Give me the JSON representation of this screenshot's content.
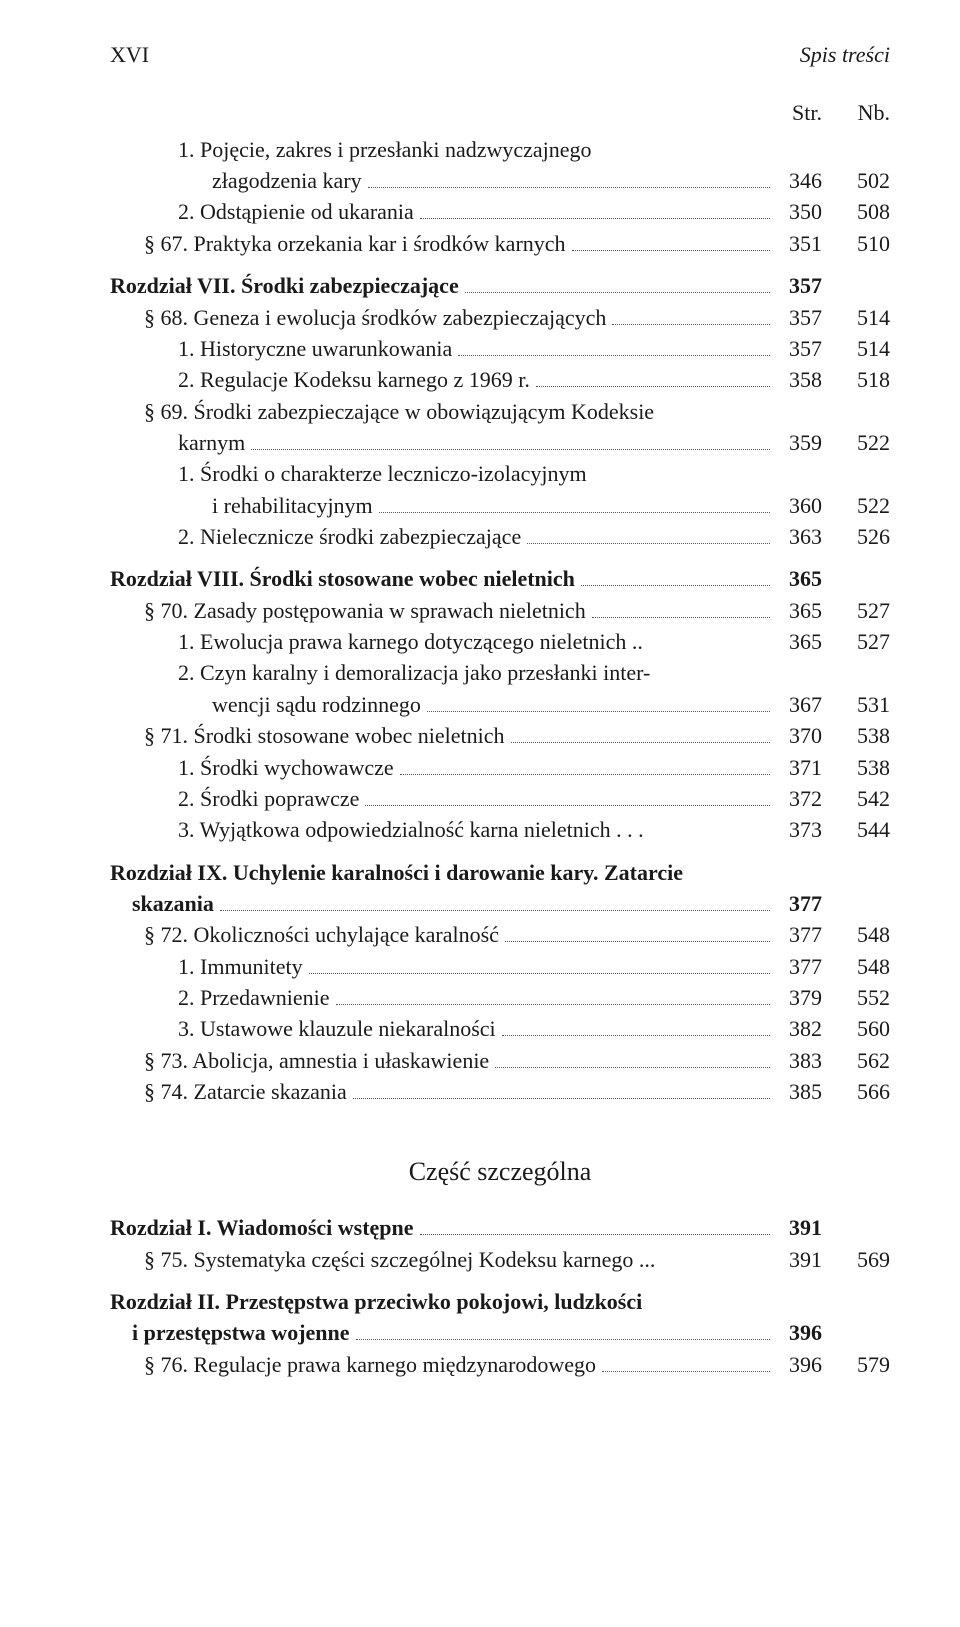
{
  "running_head": {
    "folio": "XVI",
    "title": "Spis treści"
  },
  "col_headers": {
    "str": "Str.",
    "nb": "Nb."
  },
  "part_title": "Część szczególna",
  "lines": [
    {
      "type": "entry",
      "indent": 2,
      "label": "1. Pojęcie, zakres i przesłanki nadzwyczajnego",
      "cont": true
    },
    {
      "type": "entry",
      "indent": 3,
      "label": "złagodzenia kary",
      "str": "346",
      "nb": "502"
    },
    {
      "type": "entry",
      "indent": 2,
      "label": "2. Odstąpienie od ukarania",
      "str": "350",
      "nb": "508"
    },
    {
      "type": "entry",
      "indent": 1,
      "label": "§ 67. Praktyka orzekania kar i środków karnych",
      "str": "351",
      "nb": "510"
    },
    {
      "type": "gap",
      "size": "sm"
    },
    {
      "type": "entry",
      "indent": 0,
      "bold": true,
      "label": "Rozdział VII. Środki zabezpieczające",
      "str": "357",
      "no_nb": true
    },
    {
      "type": "entry",
      "indent": 1,
      "label": "§ 68. Geneza i ewolucja środków zabezpieczających",
      "str": "357",
      "nb": "514"
    },
    {
      "type": "entry",
      "indent": 2,
      "label": "1. Historyczne uwarunkowania",
      "str": "357",
      "nb": "514"
    },
    {
      "type": "entry",
      "indent": 2,
      "label": "2. Regulacje Kodeksu karnego z 1969 r.",
      "str": "358",
      "nb": "518"
    },
    {
      "type": "entry",
      "indent": 1,
      "label": "§ 69. Środki zabezpieczające w obowiązującym Kodeksie",
      "cont": true
    },
    {
      "type": "entry",
      "indent": 2,
      "label": "karnym",
      "str": "359",
      "nb": "522"
    },
    {
      "type": "entry",
      "indent": 2,
      "label": "1. Środki o charakterze leczniczo-izolacyjnym",
      "cont": true
    },
    {
      "type": "entry",
      "indent": 3,
      "label": "i rehabilitacyjnym",
      "str": "360",
      "nb": "522"
    },
    {
      "type": "entry",
      "indent": 2,
      "label": "2. Nielecznicze środki zabezpieczające",
      "str": "363",
      "nb": "526"
    },
    {
      "type": "gap",
      "size": "sm"
    },
    {
      "type": "entry",
      "indent": 0,
      "bold": true,
      "label": "Rozdział VIII. Środki stosowane wobec nieletnich",
      "str": "365",
      "no_nb": true
    },
    {
      "type": "entry",
      "indent": 1,
      "label": "§ 70. Zasady postępowania w sprawach nieletnich",
      "str": "365",
      "nb": "527"
    },
    {
      "type": "entry",
      "indent": 2,
      "label": "1. Ewolucja prawa karnego dotyczącego nieletnich ..",
      "str": "365",
      "nb": "527",
      "no_leader": true
    },
    {
      "type": "entry",
      "indent": 2,
      "label": "2. Czyn karalny i demoralizacja jako przesłanki inter-",
      "cont": true
    },
    {
      "type": "entry",
      "indent": 3,
      "label": "wencji sądu rodzinnego",
      "str": "367",
      "nb": "531"
    },
    {
      "type": "entry",
      "indent": 1,
      "label": "§ 71. Środki stosowane wobec nieletnich",
      "str": "370",
      "nb": "538"
    },
    {
      "type": "entry",
      "indent": 2,
      "label": "1. Środki wychowawcze",
      "str": "371",
      "nb": "538"
    },
    {
      "type": "entry",
      "indent": 2,
      "label": "2. Środki poprawcze",
      "str": "372",
      "nb": "542"
    },
    {
      "type": "entry",
      "indent": 2,
      "label": "3. Wyjątkowa odpowiedzialność karna nieletnich . . .",
      "str": "373",
      "nb": "544",
      "no_leader": true
    },
    {
      "type": "gap",
      "size": "sm"
    },
    {
      "type": "entry",
      "indent": 0,
      "bold": true,
      "label": "Rozdział IX. Uchylenie karalności i darowanie kary. Zatarcie",
      "cont": true
    },
    {
      "type": "entry",
      "indent": 0,
      "bold": true,
      "label": "    skazania",
      "str": "377",
      "no_nb": true
    },
    {
      "type": "entry",
      "indent": 1,
      "label": "§ 72. Okoliczności uchylające karalność",
      "str": "377",
      "nb": "548"
    },
    {
      "type": "entry",
      "indent": 2,
      "label": "1. Immunitety",
      "str": "377",
      "nb": "548"
    },
    {
      "type": "entry",
      "indent": 2,
      "label": "2. Przedawnienie",
      "str": "379",
      "nb": "552"
    },
    {
      "type": "entry",
      "indent": 2,
      "label": "3. Ustawowe klauzule niekaralności",
      "str": "382",
      "nb": "560"
    },
    {
      "type": "entry",
      "indent": 1,
      "label": "§ 73. Abolicja, amnestia i ułaskawienie",
      "str": "383",
      "nb": "562"
    },
    {
      "type": "entry",
      "indent": 1,
      "label": "§ 74. Zatarcie skazania",
      "str": "385",
      "nb": "566"
    },
    {
      "type": "part"
    },
    {
      "type": "entry",
      "indent": 0,
      "bold": true,
      "label": "Rozdział I. Wiadomości wstępne",
      "str": "391",
      "no_nb": true
    },
    {
      "type": "entry",
      "indent": 1,
      "label": "§ 75. Systematyka części szczególnej Kodeksu karnego ...",
      "str": "391",
      "nb": "569",
      "no_leader": true
    },
    {
      "type": "gap",
      "size": "sm"
    },
    {
      "type": "entry",
      "indent": 0,
      "bold": true,
      "label": "Rozdział II. Przestępstwa przeciwko pokojowi, ludzkości",
      "cont": true
    },
    {
      "type": "entry",
      "indent": 0,
      "bold": true,
      "label": "    i przestępstwa wojenne",
      "str": "396",
      "no_nb": true
    },
    {
      "type": "entry",
      "indent": 1,
      "label": "§ 76. Regulacje prawa karnego międzynarodowego",
      "str": "396",
      "nb": "579"
    }
  ]
}
